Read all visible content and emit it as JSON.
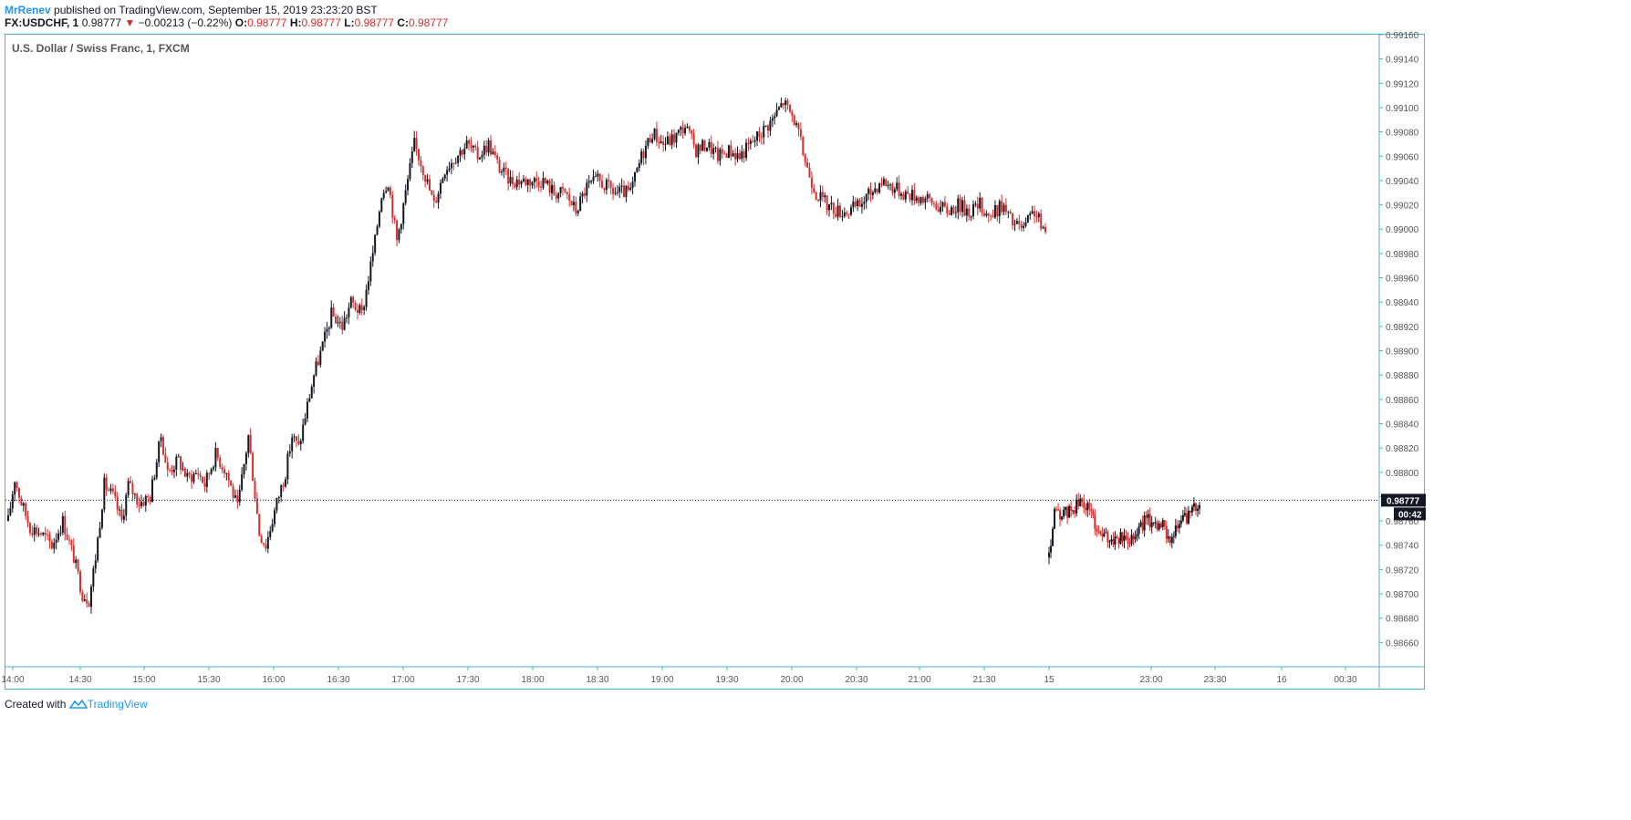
{
  "header": {
    "author": "MrRenev",
    "published_text": "published on TradingView.com, September 15, 2019 23:23:20 BST",
    "symbol_interval": "FX:USDCHF, 1",
    "last_price": "0.98777",
    "change": "−0.00213 (−0.22%)",
    "o_label": "O:",
    "o_value": "0.98777",
    "h_label": "H:",
    "h_value": "0.98777",
    "l_label": "L:",
    "l_value": "0.98777",
    "c_label": "C:",
    "c_value": "0.98777"
  },
  "footer": {
    "created_with": "Created with",
    "brand": "TradingView"
  },
  "colors": {
    "frame": "#4fb3c9",
    "up": "#131722",
    "down": "#d32f2f",
    "brand": "#2196f3"
  },
  "chart_data": {
    "type": "candlestick",
    "title": "U.S. Dollar / Swiss Franc, 1, FXCM",
    "ylim": [
      0.9864,
      0.9916
    ],
    "y_ticks": [
      "0.99160",
      "0.99140",
      "0.99120",
      "0.99100",
      "0.99080",
      "0.99060",
      "0.99040",
      "0.99020",
      "0.99000",
      "0.98980",
      "0.98960",
      "0.98940",
      "0.98920",
      "0.98900",
      "0.98880",
      "0.98860",
      "0.98840",
      "0.98820",
      "0.98800",
      "0.98780",
      "0.98760",
      "0.98740",
      "0.98720",
      "0.98700",
      "0.98680",
      "0.98660"
    ],
    "x_ticks": [
      "14:00",
      "14:30",
      "15:00",
      "15:30",
      "16:00",
      "16:30",
      "17:00",
      "17:30",
      "18:00",
      "18:30",
      "19:00",
      "19:30",
      "20:00",
      "20:30",
      "21:00",
      "21:30",
      "15",
      "23:00",
      "23:30",
      "16",
      "00:30"
    ],
    "last_price_label": "0.98777",
    "countdown_label": "00:42",
    "last_price": 0.98777,
    "segment1_close_path": [
      [
        "14:00",
        0.9876
      ],
      [
        "14:03",
        0.98795
      ],
      [
        "14:06",
        0.98775
      ],
      [
        "14:10",
        0.98755
      ],
      [
        "14:15",
        0.9875
      ],
      [
        "14:20",
        0.9874
      ],
      [
        "14:25",
        0.9876
      ],
      [
        "14:30",
        0.9873
      ],
      [
        "14:34",
        0.987
      ],
      [
        "14:37",
        0.98695
      ],
      [
        "14:40",
        0.9873
      ],
      [
        "14:44",
        0.9879
      ],
      [
        "14:48",
        0.9878
      ],
      [
        "14:52",
        0.9876
      ],
      [
        "14:55",
        0.9879
      ],
      [
        "15:00",
        0.98775
      ],
      [
        "15:05",
        0.9878
      ],
      [
        "15:10",
        0.9883
      ],
      [
        "15:13",
        0.988
      ],
      [
        "15:18",
        0.9881
      ],
      [
        "15:22",
        0.98795
      ],
      [
        "15:27",
        0.988
      ],
      [
        "15:30",
        0.9879
      ],
      [
        "15:35",
        0.98815
      ],
      [
        "15:40",
        0.988
      ],
      [
        "15:45",
        0.9877
      ],
      [
        "15:50",
        0.9883
      ],
      [
        "15:55",
        0.9875
      ],
      [
        "15:58",
        0.9874
      ],
      [
        "16:03",
        0.98775
      ],
      [
        "16:07",
        0.988
      ],
      [
        "16:10",
        0.9883
      ],
      [
        "16:13",
        0.9882
      ],
      [
        "16:17",
        0.98855
      ],
      [
        "16:20",
        0.9888
      ],
      [
        "16:25",
        0.9891
      ],
      [
        "16:28",
        0.9893
      ],
      [
        "16:33",
        0.9892
      ],
      [
        "16:37",
        0.9894
      ],
      [
        "16:42",
        0.9893
      ],
      [
        "16:45",
        0.9896
      ],
      [
        "16:48",
        0.9899
      ],
      [
        "16:51",
        0.9903
      ],
      [
        "16:54",
        0.9904
      ],
      [
        "16:58",
        0.9899
      ],
      [
        "17:02",
        0.9903
      ],
      [
        "17:06",
        0.9907
      ],
      [
        "17:10",
        0.9905
      ],
      [
        "17:15",
        0.9902
      ],
      [
        "17:20",
        0.9905
      ],
      [
        "17:25",
        0.9906
      ],
      [
        "17:30",
        0.9907
      ],
      [
        "17:35",
        0.9906
      ],
      [
        "17:40",
        0.9907
      ],
      [
        "17:45",
        0.9905
      ],
      [
        "17:50",
        0.9904
      ],
      [
        "18:00",
        0.9904
      ],
      [
        "18:05",
        0.9904
      ],
      [
        "18:10",
        0.9903
      ],
      [
        "18:15",
        0.9903
      ],
      [
        "18:20",
        0.99015
      ],
      [
        "18:25",
        0.99035
      ],
      [
        "18:30",
        0.9904
      ],
      [
        "18:38",
        0.9903
      ],
      [
        "18:45",
        0.9903
      ],
      [
        "18:50",
        0.9906
      ],
      [
        "18:55",
        0.9908
      ],
      [
        "19:00",
        0.9907
      ],
      [
        "19:05",
        0.99075
      ],
      [
        "19:10",
        0.99085
      ],
      [
        "19:15",
        0.99065
      ],
      [
        "19:20",
        0.9907
      ],
      [
        "19:25",
        0.9906
      ],
      [
        "19:30",
        0.99065
      ],
      [
        "19:35",
        0.9906
      ],
      [
        "19:40",
        0.9907
      ],
      [
        "19:45",
        0.9908
      ],
      [
        "19:50",
        0.9909
      ],
      [
        "19:55",
        0.99105
      ],
      [
        "20:00",
        0.9909
      ],
      [
        "20:03",
        0.9907
      ],
      [
        "20:06",
        0.9905
      ],
      [
        "20:10",
        0.9903
      ],
      [
        "20:15",
        0.9902
      ],
      [
        "20:20",
        0.99015
      ],
      [
        "20:25",
        0.99015
      ],
      [
        "20:30",
        0.9902
      ],
      [
        "20:35",
        0.9903
      ],
      [
        "20:40",
        0.9904
      ],
      [
        "20:45",
        0.99035
      ],
      [
        "20:50",
        0.9903
      ],
      [
        "21:00",
        0.99025
      ],
      [
        "21:05",
        0.9902
      ],
      [
        "21:10",
        0.99015
      ],
      [
        "21:15",
        0.9902
      ],
      [
        "21:20",
        0.99015
      ],
      [
        "21:25",
        0.9902
      ],
      [
        "21:30",
        0.9901
      ],
      [
        "21:35",
        0.9902
      ],
      [
        "21:40",
        0.99005
      ],
      [
        "21:45",
        0.99
      ],
      [
        "21:50",
        0.99015
      ],
      [
        "21:55",
        0.98995
      ]
    ],
    "segment2_close_path": [
      [
        "22:00",
        0.9873
      ],
      [
        "22:03",
        0.98765
      ],
      [
        "22:08",
        0.98765
      ],
      [
        "22:13",
        0.9877
      ],
      [
        "22:17",
        0.98775
      ],
      [
        "22:22",
        0.9877
      ],
      [
        "22:27",
        0.9875
      ],
      [
        "22:32",
        0.98745
      ],
      [
        "22:37",
        0.98745
      ],
      [
        "22:42",
        0.98745
      ],
      [
        "22:47",
        0.9875
      ],
      [
        "22:52",
        0.9876
      ],
      [
        "22:57",
        0.9876
      ],
      [
        "23:02",
        0.98755
      ],
      [
        "23:07",
        0.98745
      ],
      [
        "23:12",
        0.9876
      ],
      [
        "23:17",
        0.98765
      ],
      [
        "23:22",
        0.98777
      ]
    ]
  }
}
